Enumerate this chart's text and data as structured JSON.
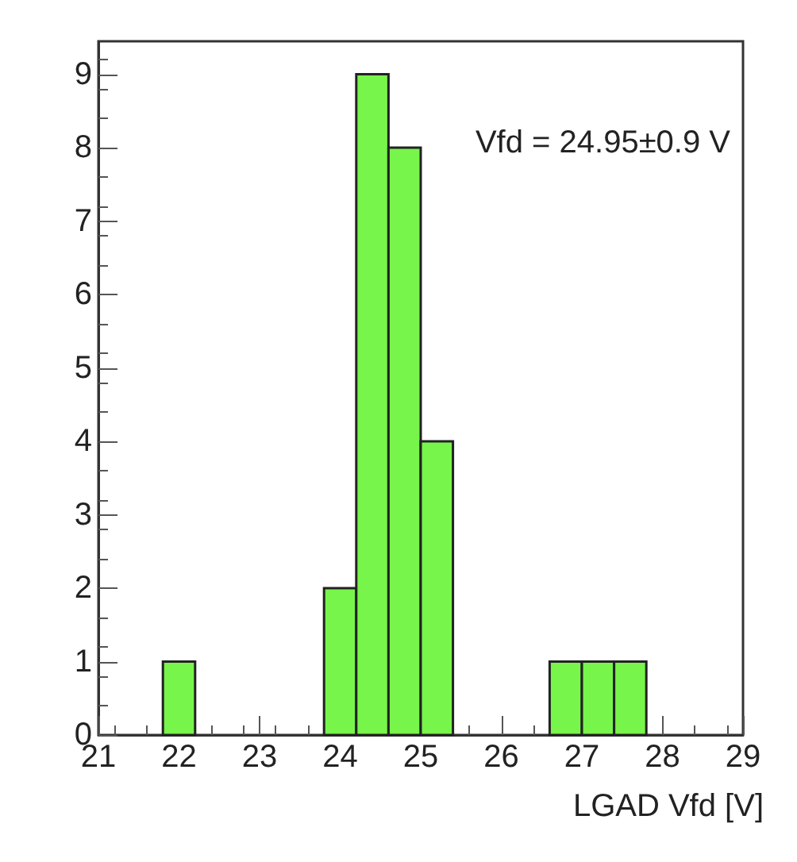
{
  "chart_data": {
    "type": "histogram",
    "xlabel": "LGAD Vfd [V]",
    "annotations": [
      "Vfd = 24.95±0.9 V"
    ],
    "bins": [
      21.8,
      22.2,
      22.6,
      23.0,
      23.4,
      23.8,
      24.2,
      24.6,
      25.0,
      25.4,
      25.8,
      26.2,
      26.6,
      27.0,
      27.4,
      27.8
    ],
    "values": [
      1,
      0,
      0,
      0,
      0,
      2,
      9,
      8,
      4,
      0,
      0,
      0,
      1,
      1,
      1
    ],
    "color": "#77f54a",
    "xlim": [
      21,
      29
    ],
    "xticks": [
      21,
      22,
      23,
      24,
      25,
      26,
      27,
      28,
      29
    ],
    "ylim": [
      0,
      9.45
    ],
    "yticks": [
      0,
      1,
      2,
      3,
      4,
      5,
      6,
      7,
      8,
      9
    ],
    "grid": false
  }
}
